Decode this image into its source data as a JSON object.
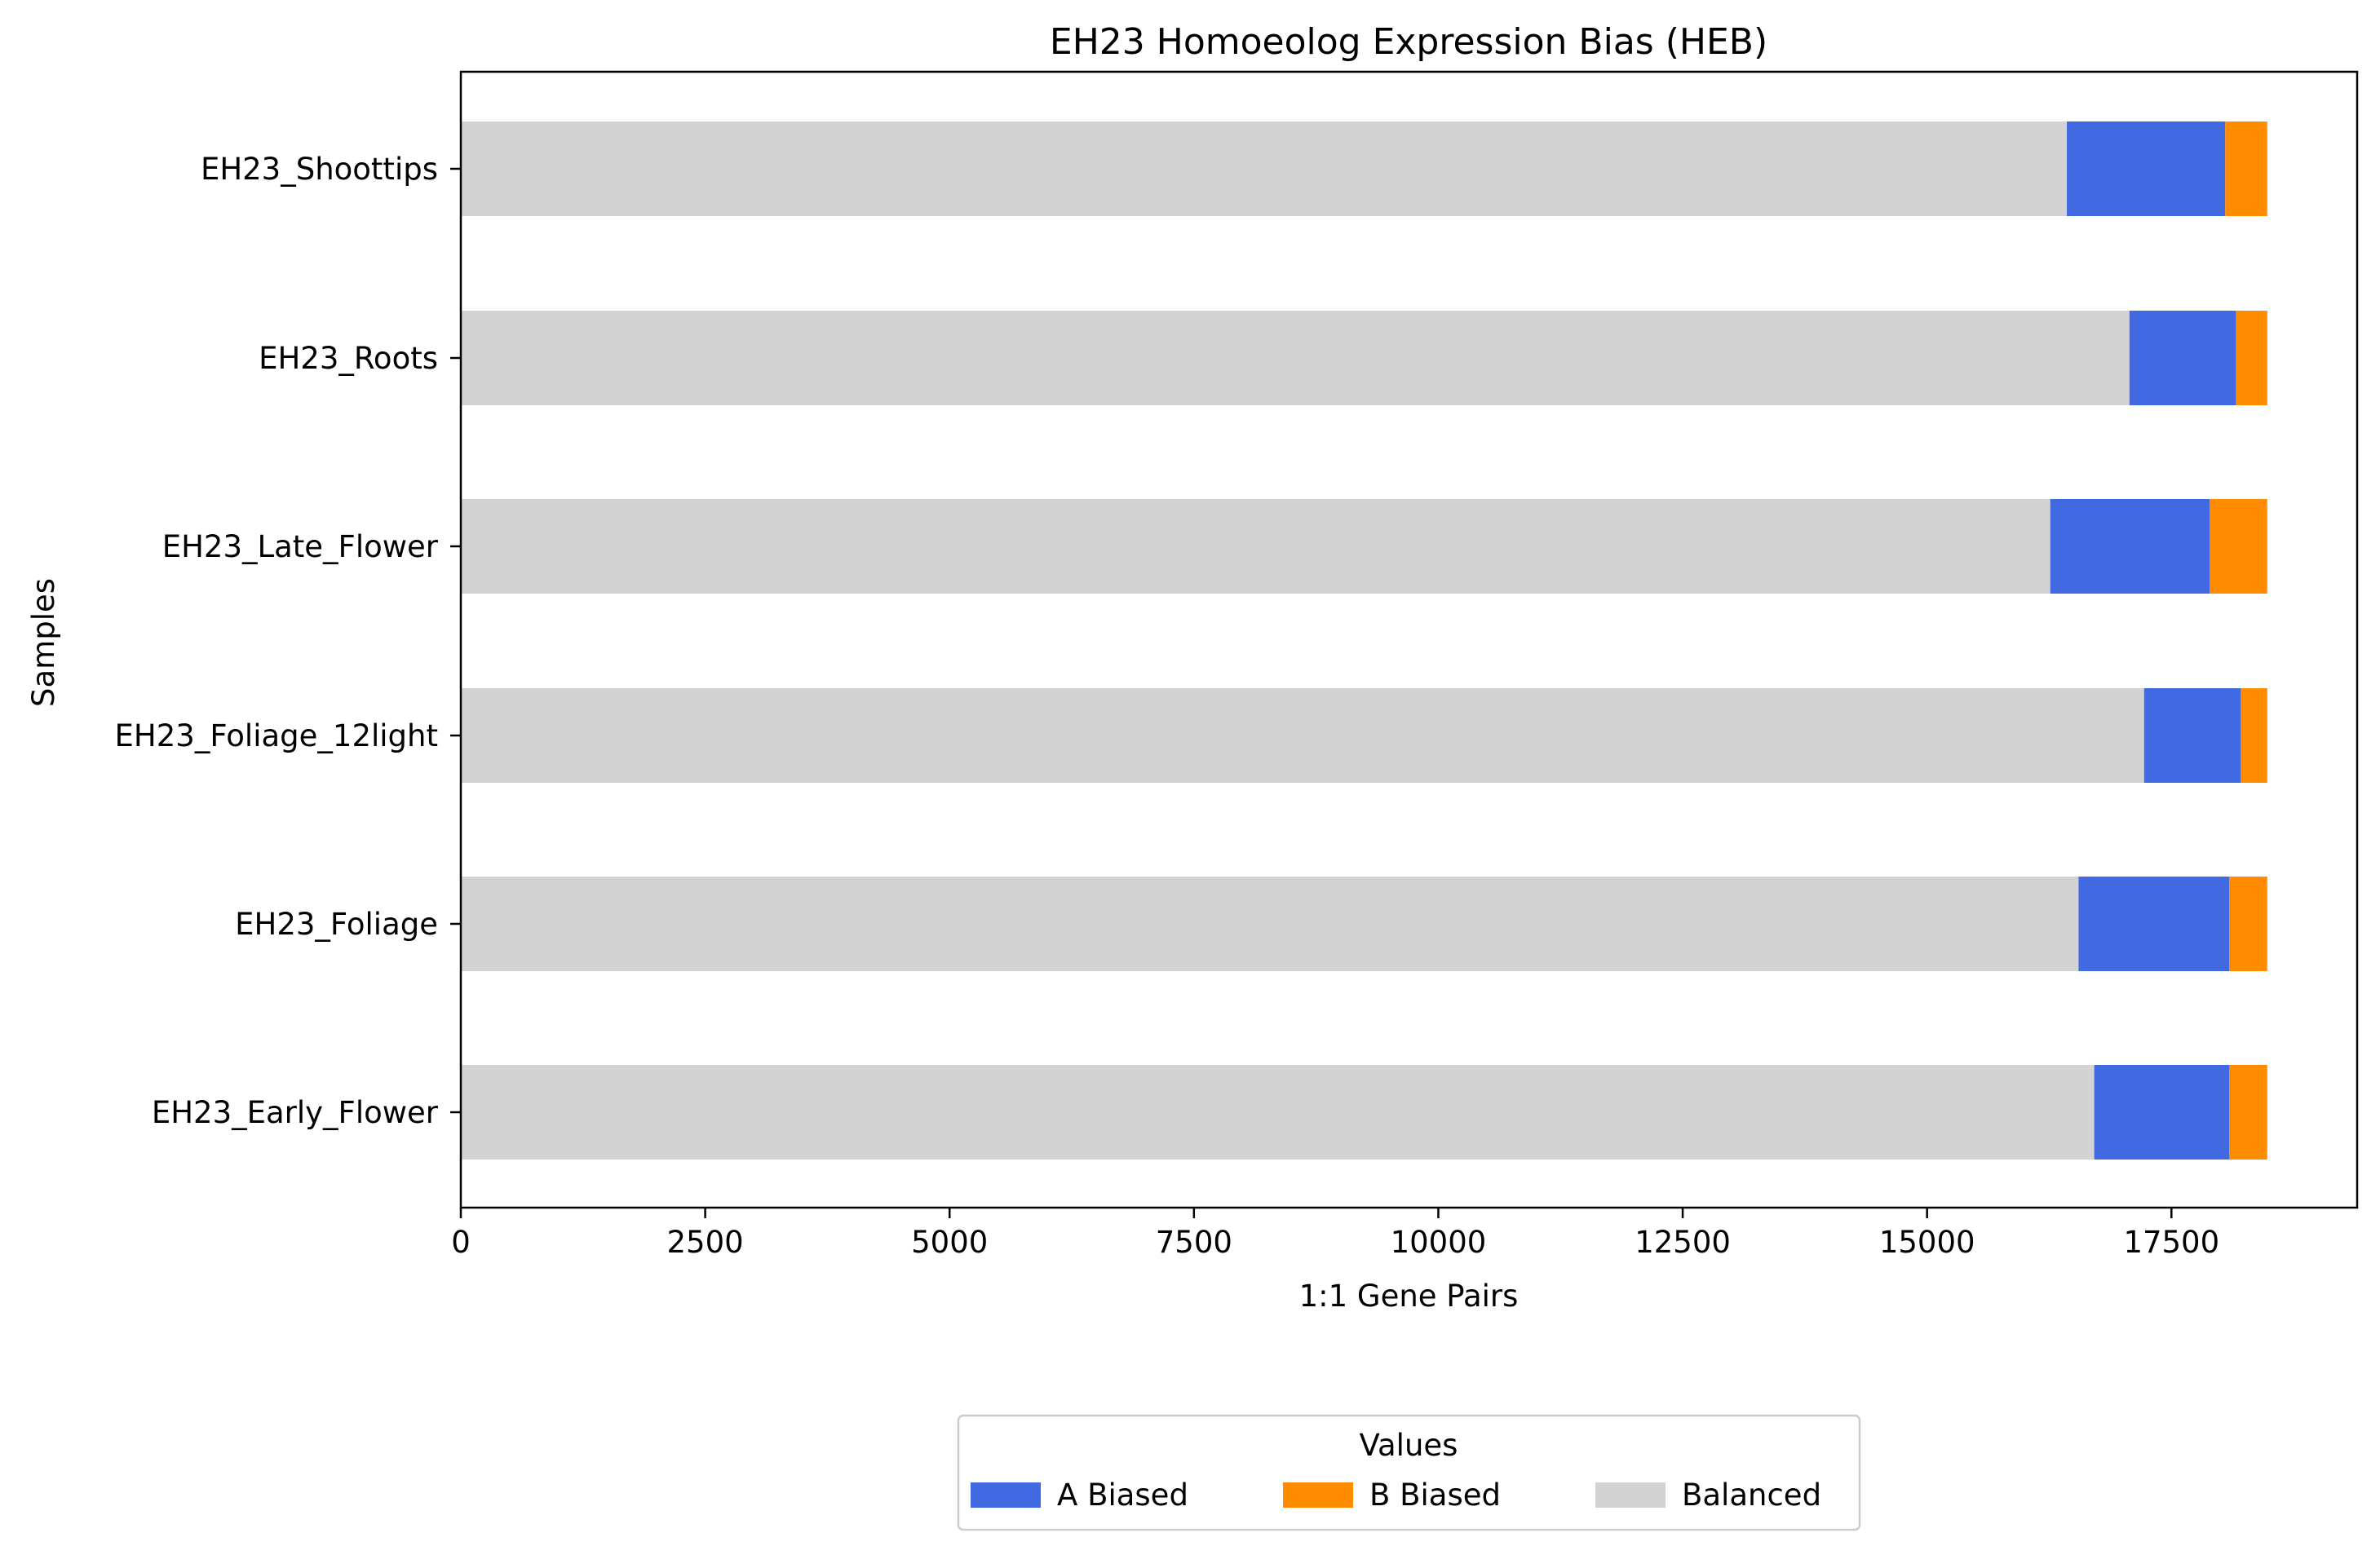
{
  "chart_data": {
    "type": "bar",
    "orientation": "horizontal",
    "stacked": true,
    "title": "EH23 Homoeolog Expression Bias (HEB)",
    "xlabel": "1:1 Gene Pairs",
    "ylabel": "Samples",
    "xlim": [
      0,
      19400
    ],
    "xticks": [
      0,
      2500,
      5000,
      7500,
      10000,
      12500,
      15000,
      17500
    ],
    "categories": [
      "EH23_Shoottips",
      "EH23_Roots",
      "EH23_Late_Flower",
      "EH23_Foliage_12light",
      "EH23_Foliage",
      "EH23_Early_Flower"
    ],
    "series": [
      {
        "key": "balanced",
        "name": "Balanced",
        "color": "#d3d3d3",
        "values": [
          16430,
          17070,
          16260,
          17220,
          16550,
          16710
        ]
      },
      {
        "key": "a_biased",
        "name": "A Biased",
        "color": "#4169e1",
        "values": [
          1620,
          1090,
          1630,
          990,
          1540,
          1380
        ]
      },
      {
        "key": "b_biased",
        "name": "B Biased",
        "color": "#ff8c00",
        "values": [
          430,
          320,
          590,
          270,
          390,
          390
        ]
      }
    ],
    "legend": {
      "title": "Values",
      "placement": "bottom-center",
      "entries": [
        "A Biased",
        "B Biased",
        "Balanced"
      ]
    },
    "grid": false
  }
}
